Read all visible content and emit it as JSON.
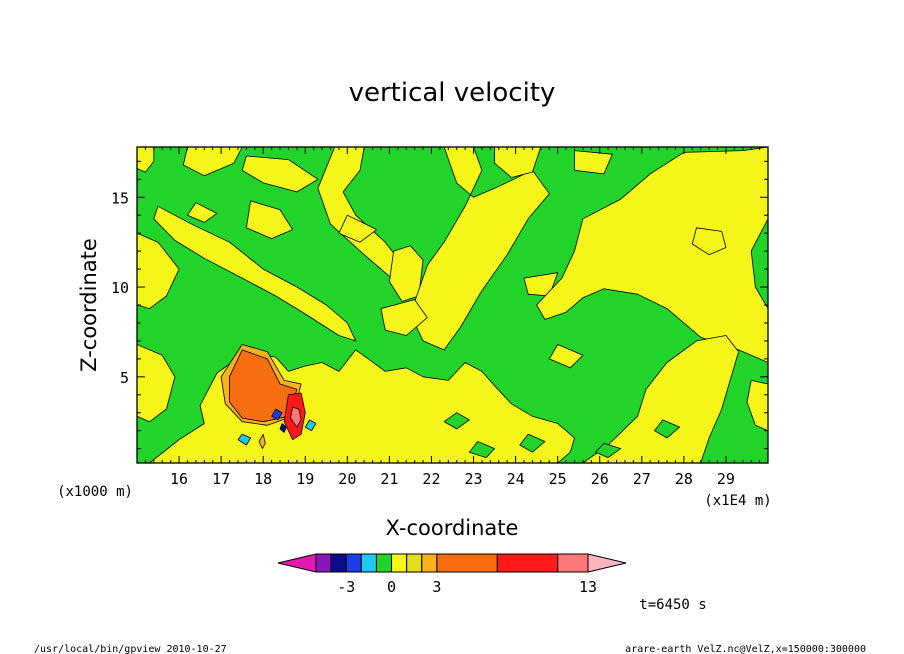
{
  "chart_data": {
    "type": "heatmap",
    "title": "vertical velocity",
    "xlabel": "X-coordinate",
    "ylabel": "Z-coordinate",
    "x_unit": "(x1E4 m)",
    "y_unit": "(x1000 m)",
    "x_ticks": [
      "16",
      "17",
      "18",
      "19",
      "20",
      "21",
      "22",
      "23",
      "24",
      "25",
      "26",
      "27",
      "28",
      "29"
    ],
    "y_ticks": [
      "5",
      "10",
      "15"
    ],
    "xlim": [
      15.0,
      30.0
    ],
    "ylim": [
      0.2,
      17.8
    ],
    "colorbar": {
      "labels": [
        {
          "text": "-3",
          "value": -3
        },
        {
          "text": "0",
          "value": 0
        },
        {
          "text": "3",
          "value": 3
        },
        {
          "text": "13",
          "value": 13
        }
      ],
      "bins": [
        {
          "lo": null,
          "hi": -5,
          "color": "#e21ab2"
        },
        {
          "lo": -5,
          "hi": -4,
          "color": "#8a15b8"
        },
        {
          "lo": -4,
          "hi": -3,
          "color": "#0b0b8e"
        },
        {
          "lo": -3,
          "hi": -2,
          "color": "#1a3de8"
        },
        {
          "lo": -2,
          "hi": -1,
          "color": "#1ec8f0"
        },
        {
          "lo": -1,
          "hi": 0,
          "color": "#22d42a"
        },
        {
          "lo": 0,
          "hi": 1,
          "color": "#f5f51a"
        },
        {
          "lo": 1,
          "hi": 2,
          "color": "#e3dd1a"
        },
        {
          "lo": 2,
          "hi": 3,
          "color": "#f7b21c"
        },
        {
          "lo": 3,
          "hi": 7,
          "color": "#f66e10"
        },
        {
          "lo": 7,
          "hi": 11,
          "color": "#ff1a1a"
        },
        {
          "lo": 11,
          "hi": 13,
          "color": "#ff7878"
        },
        {
          "lo": 13,
          "hi": null,
          "color": "#ffb4be"
        }
      ]
    },
    "background_color": "#22d42a",
    "regions": [
      {
        "value": 0.5,
        "points": [
          [
            15.0,
            17.8
          ],
          [
            15.4,
            17.8
          ],
          [
            15.4,
            17.0
          ],
          [
            15.2,
            16.4
          ],
          [
            15.0,
            16.6
          ]
        ]
      },
      {
        "value": 0.5,
        "points": [
          [
            15.0,
            13.0
          ],
          [
            15.5,
            12.5
          ],
          [
            16.0,
            11.0
          ],
          [
            15.7,
            9.5
          ],
          [
            15.3,
            8.8
          ],
          [
            15.0,
            9.0
          ]
        ]
      },
      {
        "value": 0.5,
        "points": [
          [
            15.0,
            6.8
          ],
          [
            15.6,
            6.2
          ],
          [
            15.9,
            5.0
          ],
          [
            15.7,
            3.2
          ],
          [
            15.3,
            2.5
          ],
          [
            15.0,
            2.8
          ]
        ]
      },
      {
        "value": 0.5,
        "points": [
          [
            15.5,
            14.5
          ],
          [
            16.3,
            13.5
          ],
          [
            17.2,
            12.5
          ],
          [
            18.0,
            11.0
          ],
          [
            18.8,
            10.0
          ],
          [
            19.5,
            9.0
          ],
          [
            20.0,
            8.0
          ],
          [
            20.2,
            7.0
          ],
          [
            19.8,
            7.3
          ],
          [
            19.0,
            8.5
          ],
          [
            18.3,
            9.5
          ],
          [
            17.5,
            10.5
          ],
          [
            16.6,
            11.6
          ],
          [
            15.9,
            12.6
          ],
          [
            15.4,
            13.8
          ]
        ]
      },
      {
        "value": 0.5,
        "points": [
          [
            16.2,
            17.8
          ],
          [
            17.5,
            17.8
          ],
          [
            17.3,
            16.9
          ],
          [
            16.6,
            16.2
          ],
          [
            16.1,
            16.8
          ]
        ]
      },
      {
        "value": 0.5,
        "points": [
          [
            17.6,
            17.3
          ],
          [
            18.6,
            17.1
          ],
          [
            19.3,
            16.0
          ],
          [
            18.8,
            15.3
          ],
          [
            18.0,
            15.8
          ],
          [
            17.5,
            16.5
          ]
        ]
      },
      {
        "value": 0.5,
        "points": [
          [
            17.7,
            14.8
          ],
          [
            18.4,
            14.3
          ],
          [
            18.7,
            13.2
          ],
          [
            18.2,
            12.7
          ],
          [
            17.6,
            13.3
          ]
        ]
      },
      {
        "value": 0.5,
        "points": [
          [
            16.4,
            14.7
          ],
          [
            16.9,
            14.1
          ],
          [
            16.6,
            13.6
          ],
          [
            16.2,
            14.0
          ]
        ]
      },
      {
        "value": 0.5,
        "points": [
          [
            19.7,
            17.8
          ],
          [
            20.4,
            17.8
          ],
          [
            20.3,
            16.5
          ],
          [
            19.9,
            15.3
          ],
          [
            20.2,
            14.0
          ],
          [
            20.9,
            12.5
          ],
          [
            21.4,
            11.0
          ],
          [
            21.0,
            10.6
          ],
          [
            20.4,
            11.8
          ],
          [
            19.6,
            13.5
          ],
          [
            19.3,
            15.5
          ]
        ]
      },
      {
        "value": 0.5,
        "points": [
          [
            21.1,
            12.0
          ],
          [
            21.5,
            12.3
          ],
          [
            21.8,
            11.5
          ],
          [
            21.7,
            9.5
          ],
          [
            21.3,
            9.2
          ],
          [
            21.0,
            10.3
          ]
        ]
      },
      {
        "value": 0.5,
        "points": [
          [
            22.3,
            17.8
          ],
          [
            23.0,
            17.8
          ],
          [
            23.2,
            16.5
          ],
          [
            22.8,
            14.5
          ],
          [
            22.3,
            12.5
          ],
          [
            21.9,
            11.2
          ],
          [
            21.5,
            8.5
          ],
          [
            21.8,
            7.0
          ],
          [
            22.3,
            6.5
          ],
          [
            22.7,
            7.8
          ],
          [
            23.2,
            9.8
          ],
          [
            23.8,
            11.8
          ],
          [
            24.3,
            13.8
          ],
          [
            24.8,
            15.2
          ],
          [
            24.4,
            16.5
          ],
          [
            23.5,
            15.5
          ],
          [
            23.0,
            15.0
          ],
          [
            22.6,
            15.8
          ]
        ]
      },
      {
        "value": 0.5,
        "points": [
          [
            20.8,
            8.8
          ],
          [
            21.6,
            9.3
          ],
          [
            21.9,
            8.3
          ],
          [
            21.4,
            7.3
          ],
          [
            20.9,
            7.6
          ]
        ]
      },
      {
        "value": 0.5,
        "points": [
          [
            23.5,
            17.8
          ],
          [
            24.6,
            17.8
          ],
          [
            24.4,
            16.4
          ],
          [
            23.9,
            16.1
          ],
          [
            23.5,
            16.9
          ]
        ]
      },
      {
        "value": 0.5,
        "points": [
          [
            25.4,
            17.6
          ],
          [
            26.3,
            17.4
          ],
          [
            26.1,
            16.3
          ],
          [
            25.4,
            16.5
          ]
        ]
      },
      {
        "value": 0.5,
        "points": [
          [
            24.2,
            10.5
          ],
          [
            25.0,
            10.8
          ],
          [
            24.8,
            9.5
          ],
          [
            24.3,
            9.6
          ]
        ]
      },
      {
        "value": 0.5,
        "points": [
          [
            25.6,
            13.8
          ],
          [
            26.5,
            14.9
          ],
          [
            27.2,
            16.3
          ],
          [
            28.0,
            17.5
          ],
          [
            29.4,
            17.6
          ],
          [
            30.0,
            17.8
          ],
          [
            30.0,
            13.8
          ],
          [
            29.6,
            12.0
          ],
          [
            29.7,
            10.0
          ],
          [
            30.0,
            8.8
          ],
          [
            30.0,
            5.8
          ],
          [
            29.3,
            6.5
          ],
          [
            28.4,
            7.2
          ],
          [
            27.6,
            8.8
          ],
          [
            26.9,
            9.6
          ],
          [
            26.1,
            9.9
          ],
          [
            25.6,
            9.4
          ],
          [
            25.2,
            8.6
          ],
          [
            24.7,
            8.2
          ],
          [
            24.5,
            9.0
          ],
          [
            25.1,
            10.5
          ],
          [
            25.4,
            12.0
          ]
        ]
      },
      {
        "value": 0.5,
        "points": [
          [
            28.3,
            13.3
          ],
          [
            28.9,
            13.1
          ],
          [
            29.0,
            12.2
          ],
          [
            28.6,
            11.8
          ],
          [
            28.2,
            12.4
          ]
        ]
      },
      {
        "value": 0.5,
        "points": [
          [
            25.0,
            6.8
          ],
          [
            25.6,
            6.2
          ],
          [
            25.3,
            5.5
          ],
          [
            24.8,
            6.0
          ]
        ]
      },
      {
        "value": 0.5,
        "points": [
          [
            29.6,
            4.8
          ],
          [
            30.0,
            4.6
          ],
          [
            30.0,
            2.0
          ],
          [
            29.7,
            2.3
          ],
          [
            29.5,
            3.6
          ]
        ]
      },
      {
        "value": 0.5,
        "points": [
          [
            15.3,
            0.2
          ],
          [
            16.0,
            1.5
          ],
          [
            16.6,
            2.4
          ],
          [
            16.5,
            3.4
          ],
          [
            16.9,
            5.2
          ],
          [
            17.6,
            6.4
          ],
          [
            18.3,
            6.1
          ],
          [
            18.6,
            5.3
          ],
          [
            19.0,
            5.6
          ],
          [
            19.4,
            5.8
          ],
          [
            19.8,
            5.3
          ],
          [
            20.2,
            6.5
          ],
          [
            20.5,
            6.0
          ],
          [
            20.9,
            5.3
          ],
          [
            21.4,
            5.5
          ],
          [
            21.8,
            5.0
          ],
          [
            22.4,
            4.8
          ],
          [
            22.8,
            5.8
          ],
          [
            23.2,
            5.3
          ],
          [
            23.5,
            4.5
          ],
          [
            23.9,
            3.5
          ],
          [
            24.4,
            2.8
          ],
          [
            25.0,
            2.4
          ],
          [
            25.4,
            1.6
          ],
          [
            25.3,
            0.8
          ],
          [
            25.0,
            0.2
          ]
        ]
      },
      {
        "value": 0.5,
        "points": [
          [
            25.6,
            0.2
          ],
          [
            26.2,
            1.2
          ],
          [
            26.9,
            2.8
          ],
          [
            27.1,
            4.3
          ],
          [
            27.6,
            5.8
          ],
          [
            28.3,
            7.0
          ],
          [
            29.0,
            7.3
          ],
          [
            29.3,
            6.4
          ],
          [
            29.1,
            4.8
          ],
          [
            28.9,
            3.2
          ],
          [
            28.6,
            1.6
          ],
          [
            28.4,
            0.2
          ]
        ]
      },
      {
        "value": 0.5,
        "points": [
          [
            20.0,
            14.0
          ],
          [
            20.7,
            13.2
          ],
          [
            20.3,
            12.5
          ],
          [
            19.8,
            13.0
          ]
        ]
      },
      {
        "value": -0.5,
        "points": [
          [
            23.1,
            1.4
          ],
          [
            23.5,
            1.0
          ],
          [
            23.3,
            0.5
          ],
          [
            22.9,
            0.8
          ]
        ]
      },
      {
        "value": -0.5,
        "points": [
          [
            24.3,
            1.8
          ],
          [
            24.7,
            1.4
          ],
          [
            24.4,
            0.8
          ],
          [
            24.1,
            1.2
          ]
        ]
      },
      {
        "value": -0.5,
        "points": [
          [
            27.5,
            2.6
          ],
          [
            27.9,
            2.2
          ],
          [
            27.6,
            1.6
          ],
          [
            27.3,
            2.0
          ]
        ]
      },
      {
        "value": -0.5,
        "points": [
          [
            26.1,
            1.3
          ],
          [
            26.5,
            1.0
          ],
          [
            26.2,
            0.5
          ],
          [
            25.9,
            0.8
          ]
        ]
      },
      {
        "value": -0.5,
        "points": [
          [
            22.6,
            3.0
          ],
          [
            22.9,
            2.6
          ],
          [
            22.6,
            2.1
          ],
          [
            22.3,
            2.5
          ]
        ]
      },
      {
        "value": 2.5,
        "points": [
          [
            17.0,
            5.0
          ],
          [
            17.5,
            6.8
          ],
          [
            18.1,
            6.4
          ],
          [
            18.5,
            4.8
          ],
          [
            18.9,
            4.6
          ],
          [
            18.7,
            2.8
          ],
          [
            18.1,
            2.3
          ],
          [
            17.5,
            2.5
          ],
          [
            17.1,
            3.5
          ]
        ]
      },
      {
        "value": 5.0,
        "points": [
          [
            17.2,
            5.0
          ],
          [
            17.5,
            6.5
          ],
          [
            18.1,
            6.0
          ],
          [
            18.4,
            4.6
          ],
          [
            18.8,
            4.3
          ],
          [
            18.6,
            2.8
          ],
          [
            18.0,
            2.5
          ],
          [
            17.5,
            2.7
          ],
          [
            17.2,
            3.6
          ]
        ]
      },
      {
        "value": 9.0,
        "points": [
          [
            18.6,
            4.0
          ],
          [
            18.9,
            4.1
          ],
          [
            19.0,
            3.0
          ],
          [
            18.9,
            1.8
          ],
          [
            18.7,
            1.5
          ],
          [
            18.5,
            2.5
          ]
        ]
      },
      {
        "value": 12.0,
        "points": [
          [
            18.7,
            3.3
          ],
          [
            18.85,
            3.2
          ],
          [
            18.9,
            2.6
          ],
          [
            18.8,
            2.2
          ],
          [
            18.65,
            2.7
          ]
        ]
      },
      {
        "value": -1.5,
        "points": [
          [
            17.5,
            1.8
          ],
          [
            17.7,
            1.6
          ],
          [
            17.6,
            1.2
          ],
          [
            17.4,
            1.5
          ]
        ]
      },
      {
        "value": -1.5,
        "points": [
          [
            19.1,
            2.6
          ],
          [
            19.25,
            2.4
          ],
          [
            19.15,
            2.0
          ],
          [
            19.0,
            2.2
          ]
        ]
      },
      {
        "value": -2.5,
        "points": [
          [
            18.3,
            3.2
          ],
          [
            18.45,
            3.0
          ],
          [
            18.35,
            2.6
          ],
          [
            18.2,
            2.8
          ]
        ]
      },
      {
        "value": -3.5,
        "points": [
          [
            18.45,
            2.4
          ],
          [
            18.55,
            2.2
          ],
          [
            18.5,
            1.9
          ],
          [
            18.4,
            2.1
          ]
        ]
      },
      {
        "value": 2.5,
        "points": [
          [
            17.9,
            1.4
          ],
          [
            18.0,
            1.8
          ],
          [
            18.05,
            1.3
          ],
          [
            17.98,
            1.0
          ]
        ]
      }
    ]
  },
  "annotations": {
    "time": "t=6450 s",
    "footer_left": "/usr/local/bin/gpview   2010-10-27",
    "footer_right": "arare-earth_VelZ.nc@VelZ,x=150000:300000"
  }
}
